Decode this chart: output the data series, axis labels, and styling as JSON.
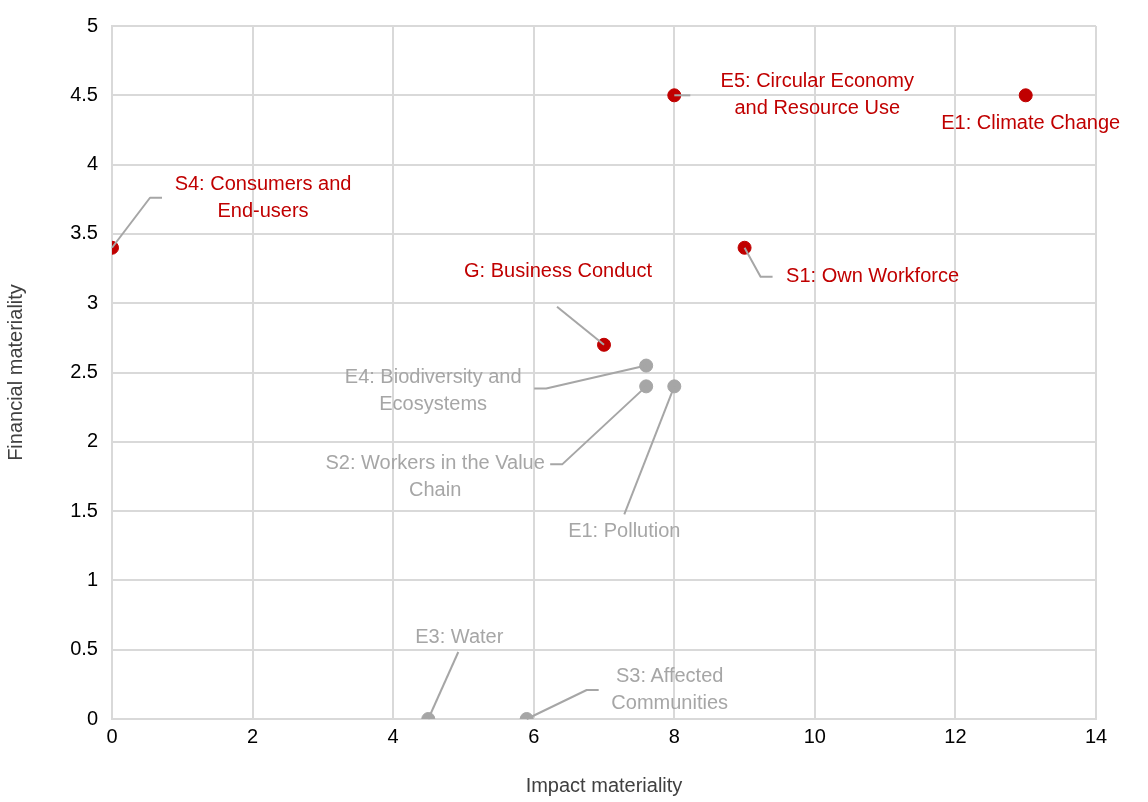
{
  "chart_data": {
    "type": "scatter",
    "xlabel": "Impact materiality",
    "ylabel": "Financial materiality",
    "series": [
      {
        "color": "#c00000",
        "x": [
          13,
          8,
          0,
          9,
          7
        ],
        "values": [
          4.5,
          4.5,
          3.4,
          3.4,
          2.7
        ]
      },
      {
        "color": "#a6a6a6",
        "x": [
          7.6,
          7.6,
          8,
          4.5,
          5.9
        ],
        "values": [
          2.55,
          2.4,
          2.4,
          0,
          0
        ]
      }
    ],
    "xlim": [
      0,
      14
    ],
    "xticks": [
      0,
      2,
      4,
      6,
      8,
      10,
      12,
      14
    ],
    "ylim": [
      0,
      5
    ],
    "yticks": [
      0,
      0.5,
      1,
      1.5,
      2,
      2.5,
      3,
      3.5,
      4,
      4.5,
      5
    ],
    "grid": true,
    "legend": false,
    "marker": "circle",
    "annotations": [
      {
        "text": "S4: Consumers and\nEnd-users",
        "x": 0,
        "y": 3.4
      },
      {
        "text": "E5: Circular Economy\nand Resource Use",
        "x": 8,
        "y": 4.5
      },
      {
        "text": "E1: Climate Change",
        "x": 13,
        "y": 4.5
      },
      {
        "text": "S1: Own Workforce",
        "x": 9,
        "y": 3.4
      },
      {
        "text": "G: Business Conduct",
        "x": 7,
        "y": 2.7
      },
      {
        "text": "E4: Biodiversity and\nEcosystems",
        "x": 7.6,
        "y": 2.55
      },
      {
        "text": "S2: Workers in the Value\nChain",
        "x": 7.6,
        "y": 2.4
      },
      {
        "text": "E1: Pollution",
        "x": 8,
        "y": 2.4
      },
      {
        "text": "E3: Water",
        "x": 4.5,
        "y": 0
      },
      {
        "text": "S3: Affected\nCommunities",
        "x": 5.9,
        "y": 0
      }
    ]
  }
}
